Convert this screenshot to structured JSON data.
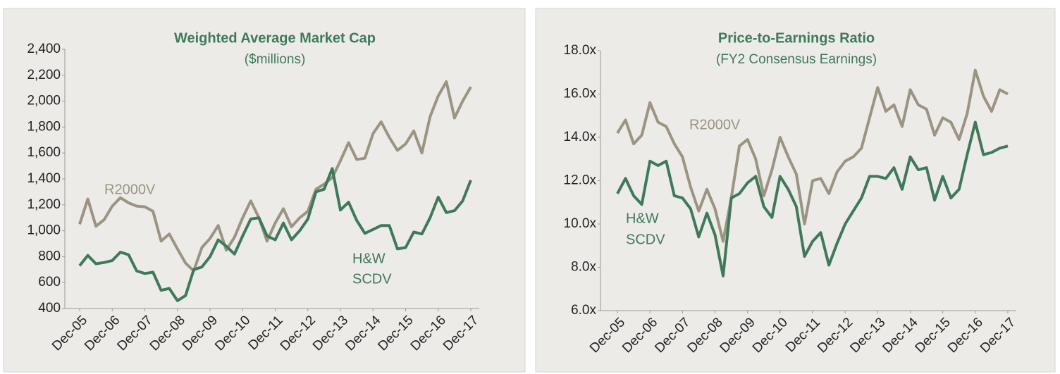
{
  "chart_data": [
    {
      "type": "line",
      "title": "Weighted Average Market Cap",
      "subtitle": "($millions)",
      "categories": [
        "Dec-05",
        null,
        null,
        null,
        "Dec-06",
        null,
        null,
        null,
        "Dec-07",
        null,
        null,
        null,
        "Dec-08",
        null,
        null,
        null,
        "Dec-09",
        null,
        null,
        null,
        "Dec-10",
        null,
        null,
        null,
        "Dec-11",
        null,
        null,
        null,
        "Dec-12",
        null,
        null,
        null,
        "Dec-13",
        null,
        null,
        null,
        "Dec-14",
        null,
        null,
        null,
        "Dec-15",
        null,
        null,
        null,
        "Dec-16",
        null,
        null,
        null,
        "Dec-17"
      ],
      "series": [
        {
          "label": [
            "R2000V"
          ],
          "color": "#9c9482",
          "values": [
            1050,
            1245,
            1035,
            1085,
            1190,
            1255,
            1215,
            1190,
            1185,
            1150,
            920,
            975,
            860,
            750,
            690,
            870,
            940,
            1040,
            850,
            950,
            1100,
            1230,
            1100,
            920,
            1060,
            1170,
            1030,
            1100,
            1150,
            1320,
            1360,
            1410,
            1540,
            1680,
            1550,
            1560,
            1750,
            1840,
            1720,
            1620,
            1670,
            1770,
            1600,
            1880,
            2040,
            2150,
            1870,
            2000,
            2110
          ]
        },
        {
          "label": [
            "H&W",
            "SCDV"
          ],
          "color": "#3e7a5a",
          "values": [
            730,
            810,
            745,
            755,
            770,
            835,
            815,
            690,
            670,
            680,
            540,
            555,
            460,
            500,
            700,
            720,
            800,
            930,
            880,
            820,
            960,
            1090,
            1100,
            960,
            930,
            1060,
            930,
            1000,
            1090,
            1300,
            1320,
            1480,
            1160,
            1220,
            1080,
            980,
            1010,
            1040,
            1040,
            860,
            870,
            990,
            975,
            1100,
            1260,
            1140,
            1155,
            1230,
            1390
          ]
        }
      ],
      "ylim": [
        400,
        2400
      ],
      "yticks": [
        400,
        600,
        800,
        {
          "value": 1000,
          "label": "1,000"
        },
        {
          "value": 1200,
          "label": "1,200"
        },
        {
          "value": 1400,
          "label": "1,400"
        },
        {
          "value": 1600,
          "label": "1,600"
        },
        {
          "value": 1800,
          "label": "1,800"
        },
        {
          "value": 2000,
          "label": "2,000"
        },
        {
          "value": 2200,
          "label": "2,200"
        },
        {
          "value": 2400,
          "label": "2,400"
        }
      ],
      "grid": false
    },
    {
      "type": "line",
      "title": "Price-to-Earnings Ratio",
      "subtitle": "(FY2 Consensus Earnings)",
      "categories": [
        "Dec-05",
        null,
        null,
        null,
        "Dec-06",
        null,
        null,
        null,
        "Dec-07",
        null,
        null,
        null,
        "Dec-08",
        null,
        null,
        null,
        "Dec-09",
        null,
        null,
        null,
        "Dec-10",
        null,
        null,
        null,
        "Dec-11",
        null,
        null,
        null,
        "Dec-12",
        null,
        null,
        null,
        "Dec-13",
        null,
        null,
        null,
        "Dec-14",
        null,
        null,
        null,
        "Dec-15",
        null,
        null,
        null,
        "Dec-16",
        null,
        null,
        null,
        "Dec-17"
      ],
      "series": [
        {
          "label": [
            "R2000V"
          ],
          "color": "#9c9482",
          "values": [
            14.2,
            14.8,
            13.7,
            14.1,
            15.6,
            14.7,
            14.5,
            13.7,
            13.1,
            11.7,
            10.6,
            11.6,
            10.7,
            9.2,
            11.2,
            13.6,
            13.9,
            13.0,
            11.3,
            12.5,
            14.0,
            13.1,
            12.3,
            10.0,
            12.0,
            12.1,
            11.4,
            12.4,
            12.9,
            13.1,
            13.5,
            14.9,
            16.3,
            15.2,
            15.5,
            14.5,
            16.2,
            15.5,
            15.3,
            14.1,
            14.9,
            14.7,
            13.9,
            15.1,
            17.1,
            15.9,
            15.2,
            16.2,
            16.0
          ]
        },
        {
          "label": [
            "H&W",
            "SCDV"
          ],
          "color": "#3e7a5a",
          "values": [
            11.4,
            12.1,
            11.3,
            10.9,
            12.9,
            12.7,
            12.9,
            11.3,
            11.2,
            10.7,
            9.4,
            10.5,
            9.5,
            7.6,
            11.2,
            11.4,
            11.9,
            12.2,
            10.8,
            10.3,
            12.2,
            11.6,
            10.8,
            8.5,
            9.2,
            9.6,
            8.1,
            9.1,
            10.0,
            10.6,
            11.2,
            12.2,
            12.2,
            12.1,
            12.6,
            11.6,
            13.1,
            12.5,
            12.6,
            11.1,
            12.2,
            11.2,
            11.6,
            13.2,
            14.7,
            13.2,
            13.3,
            13.5,
            13.6
          ]
        }
      ],
      "ylim": [
        6,
        18
      ],
      "yticks": [
        {
          "value": 6,
          "label": "6.0x"
        },
        {
          "value": 8,
          "label": "8.0x"
        },
        {
          "value": 10,
          "label": "10.0x"
        },
        {
          "value": 12,
          "label": "12.0x"
        },
        {
          "value": 14,
          "label": "14.0x"
        },
        {
          "value": 16,
          "label": "16.0x"
        },
        {
          "value": 18,
          "label": "18.0x"
        }
      ],
      "grid": false
    }
  ]
}
